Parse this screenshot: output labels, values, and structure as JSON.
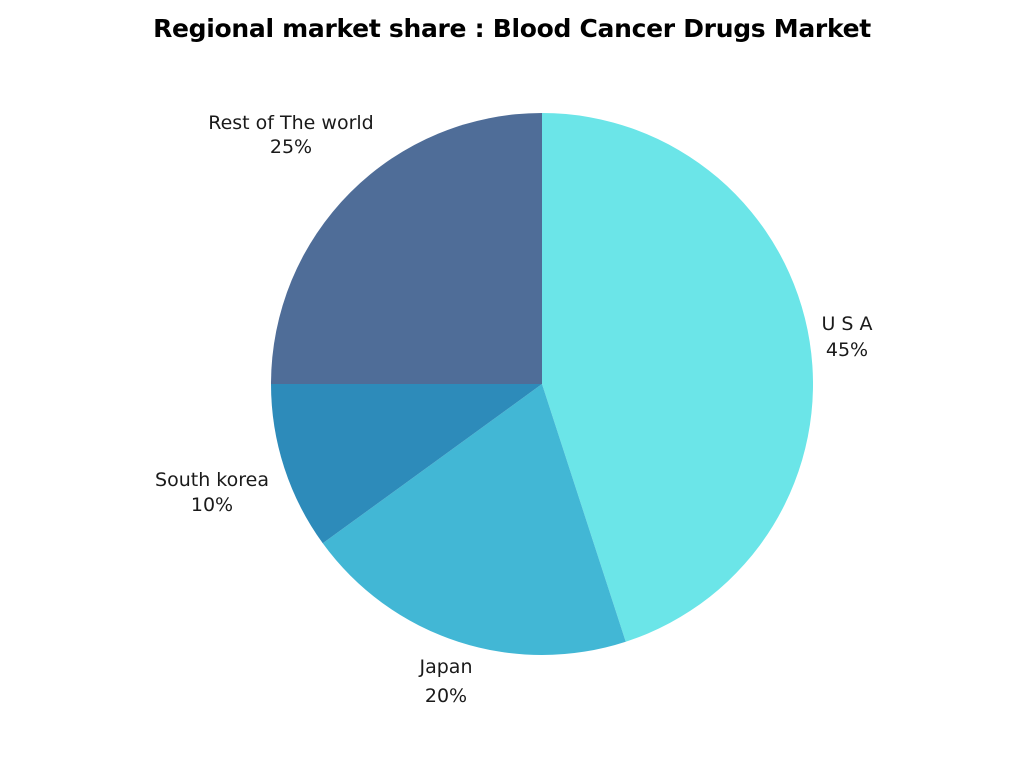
{
  "chart_data": {
    "type": "pie",
    "title": "Regional market share : Blood Cancer Drugs Market",
    "slices": [
      {
        "label": "U S A",
        "value": 45,
        "value_label": "45%",
        "color": "#6be5e8"
      },
      {
        "label": "Japan",
        "value": 20,
        "value_label": "20%",
        "color": "#42b7d5"
      },
      {
        "label": "South korea",
        "value": 10,
        "value_label": "10%",
        "color": "#2d8bba"
      },
      {
        "label": "Rest of The world",
        "value": 25,
        "value_label": "25%",
        "color": "#4f6d98"
      }
    ],
    "start_angle": "12 o'clock",
    "direction": "clockwise"
  }
}
